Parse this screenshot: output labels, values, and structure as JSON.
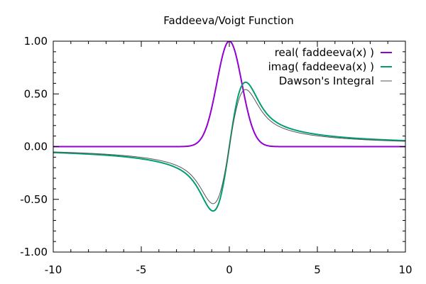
{
  "chart_data": {
    "type": "line",
    "title": "Faddeeva/Voigt Function",
    "xlabel": "",
    "ylabel": "",
    "xlim": [
      -10,
      10
    ],
    "ylim": [
      -1.0,
      1.0
    ],
    "x_ticks": [
      -10,
      -5,
      0,
      5,
      10
    ],
    "x_tick_labels": [
      "-10",
      "-5",
      "0",
      "5",
      "10"
    ],
    "y_ticks": [
      -1.0,
      -0.5,
      0.0,
      0.5,
      1.0
    ],
    "y_tick_labels": [
      "-1.00",
      "-0.50",
      "0.00",
      "0.50",
      "1.00"
    ],
    "grid": false,
    "legend_position": "top-right",
    "series": [
      {
        "name": "real( faddeeva(x) )",
        "color": "#9400d3",
        "function": "exp(-x^2)",
        "x": [
          -10,
          -3,
          -2.5,
          -2,
          -1.5,
          -1,
          -0.5,
          0,
          0.5,
          1,
          1.5,
          2,
          2.5,
          3,
          10
        ],
        "values": [
          0.0,
          0.0001,
          0.0019,
          0.0183,
          0.1054,
          0.3679,
          0.7788,
          1.0,
          0.7788,
          0.3679,
          0.1054,
          0.0183,
          0.0019,
          0.0001,
          0.0
        ]
      },
      {
        "name": "imag( faddeeva(x) )",
        "color": "#009e73",
        "function": "(2/sqrt(pi)) * dawson(x)",
        "x": [
          -10,
          -5,
          -3,
          -2,
          -1.5,
          -1,
          -0.5,
          0,
          0.5,
          1,
          1.5,
          2,
          3,
          5,
          10
        ],
        "values": [
          -0.0568,
          -0.115,
          -0.2024,
          -0.3406,
          -0.4768,
          -0.6072,
          -0.4827,
          0.0,
          0.4827,
          0.6072,
          0.4768,
          0.3406,
          0.2024,
          0.115,
          0.0568
        ]
      },
      {
        "name": "Dawson's Integral",
        "color": "#555555",
        "function": "dawson(x)",
        "x": [
          -10,
          -5,
          -3,
          -2,
          -1.5,
          -1,
          -0.5,
          0,
          0.5,
          1,
          1.5,
          2,
          3,
          5,
          10
        ],
        "values": [
          -0.0503,
          -0.1021,
          -0.1783,
          -0.3013,
          -0.4283,
          -0.5381,
          -0.4244,
          0.0,
          0.4244,
          0.5381,
          0.4283,
          0.3013,
          0.1783,
          0.1021,
          0.0503
        ]
      }
    ]
  }
}
